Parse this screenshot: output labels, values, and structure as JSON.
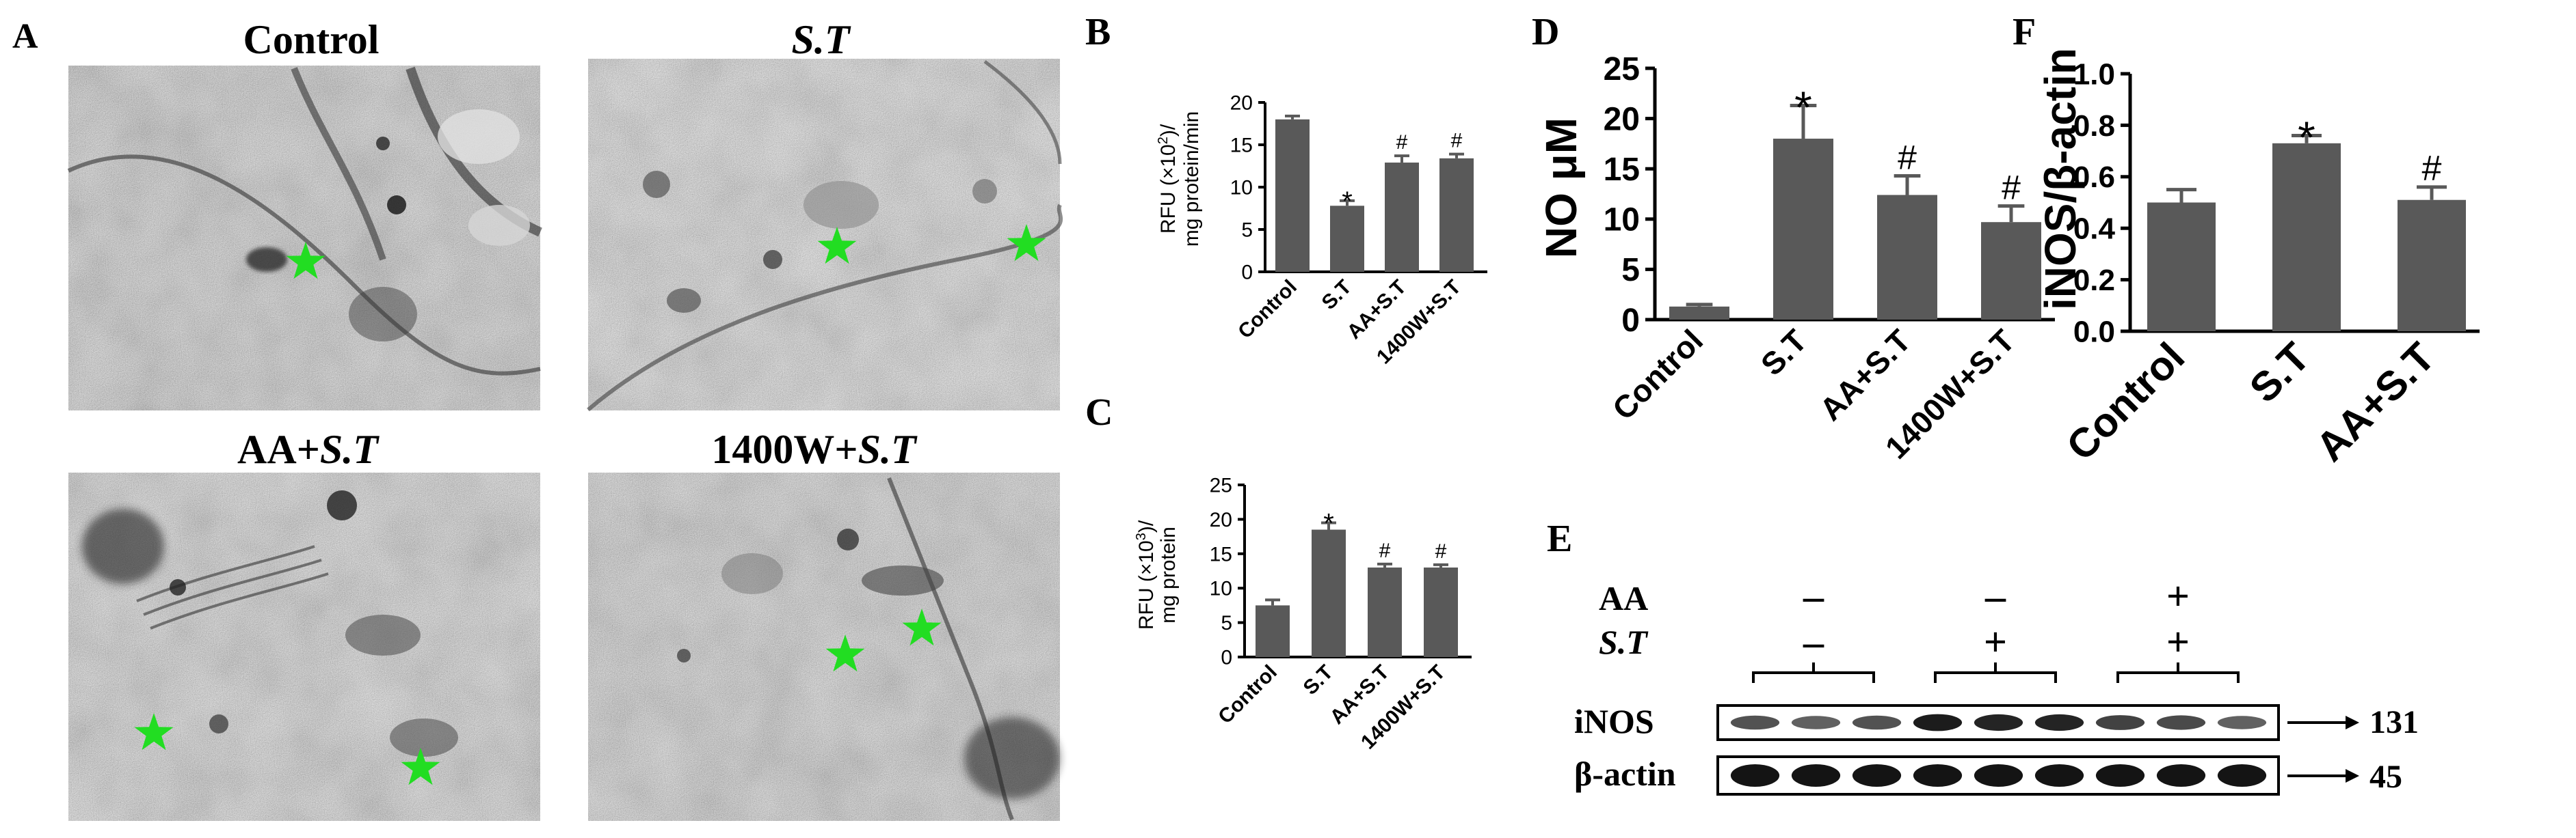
{
  "panel_letters": {
    "A": "A",
    "B": "B",
    "C": "C",
    "D": "D",
    "E": "E",
    "F": "F"
  },
  "micrographs": [
    {
      "title_plain": "Control",
      "title_italic": ""
    },
    {
      "title_plain": "",
      "title_italic": "S.T"
    },
    {
      "title_plain": "AA+",
      "title_italic": "S.T"
    },
    {
      "title_plain": "1400W+",
      "title_italic": "S.T"
    }
  ],
  "star_color": "#22dd22",
  "bar_color": "#595959",
  "chart_data": [
    {
      "panel": "B",
      "type": "bar",
      "categories": [
        "Control",
        "S.T",
        "AA+S.T",
        "1400W+S.T"
      ],
      "values": [
        18.0,
        7.8,
        12.9,
        13.4
      ],
      "errors": [
        0.4,
        0.6,
        0.8,
        0.5
      ],
      "markers": [
        "",
        "*",
        "#",
        "#"
      ],
      "ylabel_line1_pre": "RFU (×10",
      "ylabel_line1_sup": "2",
      "ylabel_line1_post": ")/",
      "ylabel_line2": "mg protein/min",
      "ylim": [
        0,
        20
      ],
      "yticks": [
        0,
        5,
        10,
        15,
        20
      ],
      "ytick_labels": [
        "0",
        "5",
        "10",
        "15",
        "20"
      ]
    },
    {
      "panel": "C",
      "type": "bar",
      "categories": [
        "Control",
        "S.T",
        "AA+S.T",
        "1400W+S.T"
      ],
      "values": [
        7.5,
        18.5,
        13.0,
        13.0
      ],
      "errors": [
        0.8,
        1.0,
        0.5,
        0.4
      ],
      "markers": [
        "",
        "*",
        "#",
        "#"
      ],
      "ylabel_line1_pre": "RFU (×10",
      "ylabel_line1_sup": "3",
      "ylabel_line1_post": ")/",
      "ylabel_line2": "mg protein",
      "ylim": [
        0,
        25
      ],
      "yticks": [
        0,
        5,
        10,
        15,
        20,
        25
      ],
      "ytick_labels": [
        "0",
        "5",
        "10",
        "15",
        "20",
        "25"
      ]
    },
    {
      "panel": "D",
      "type": "bar",
      "categories": [
        "Control",
        "S.T",
        "AA+S.T",
        "1400W+S.T"
      ],
      "values": [
        1.3,
        18.0,
        12.4,
        9.7
      ],
      "errors": [
        0.2,
        3.3,
        1.9,
        1.6
      ],
      "markers": [
        "",
        "*",
        "#",
        "#"
      ],
      "ylabel": "NO μM",
      "ylim": [
        0,
        25
      ],
      "yticks": [
        0,
        5,
        10,
        15,
        20,
        25
      ],
      "ytick_labels": [
        "0",
        "5",
        "10",
        "15",
        "20",
        "25"
      ]
    },
    {
      "panel": "F",
      "type": "bar",
      "categories": [
        "Control",
        "S.T",
        "AA+S.T"
      ],
      "values": [
        0.5,
        0.73,
        0.51
      ],
      "errors": [
        0.05,
        0.03,
        0.05
      ],
      "markers": [
        "",
        "*",
        "#"
      ],
      "ylabel": "iNOS/β-actin",
      "ylim": [
        0,
        1.0
      ],
      "yticks": [
        0,
        0.2,
        0.4,
        0.6,
        0.8,
        1.0
      ],
      "ytick_labels": [
        "0.0",
        "0.2",
        "0.4",
        "0.6",
        "0.8",
        "1.0"
      ]
    }
  ],
  "western_blot": {
    "row_labels": {
      "aa": "AA",
      "st": "S.T"
    },
    "treatments": [
      {
        "aa": "–",
        "st": "–"
      },
      {
        "aa": "–",
        "st": "+"
      },
      {
        "aa": "+",
        "st": "+"
      }
    ],
    "bands": [
      {
        "label": "iNOS",
        "size": "131",
        "intensities": [
          0.55,
          0.45,
          0.55,
          0.9,
          0.85,
          0.85,
          0.65,
          0.6,
          0.45
        ]
      },
      {
        "label": "β-actin",
        "size": "45",
        "intensities": [
          0.95,
          0.95,
          0.95,
          0.95,
          0.95,
          0.95,
          0.95,
          0.95,
          0.95
        ]
      }
    ]
  }
}
